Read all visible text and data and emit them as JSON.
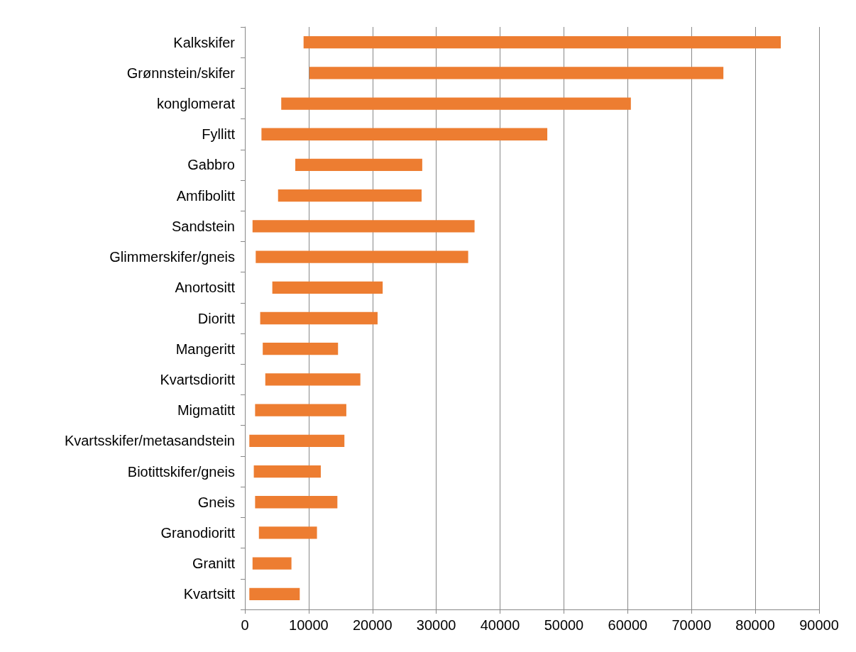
{
  "chart_data": {
    "type": "bar",
    "orientation": "horizontal",
    "categories": [
      "Kalkskifer",
      "Grønnstein/skifer",
      "konglomerat",
      "Fyllitt",
      "Gabbro",
      "Amfibolitt",
      "Sandstein",
      "Glimmerskifer/gneis",
      "Anortositt",
      "Dioritt",
      "Mangeritt",
      "Kvartsdioritt",
      "Migmatitt",
      "Kvartsskifer/metasandstein",
      "Biotittskifer/gneis",
      "Gneis",
      "Granodioritt",
      "Granitt",
      "Kvartsitt"
    ],
    "base": [
      9200,
      10100,
      5700,
      2600,
      7900,
      5200,
      1200,
      1700,
      4300,
      2400,
      2800,
      3200,
      1600,
      700,
      1400,
      1600,
      2200,
      1200,
      700
    ],
    "values": [
      74800,
      64900,
      54800,
      44800,
      19900,
      22500,
      34800,
      33300,
      17300,
      18400,
      11800,
      14900,
      14300,
      14900,
      10500,
      12900,
      9100,
      6100,
      7900
    ],
    "color": "#ed7d31",
    "xlim": [
      0,
      90000
    ],
    "xticks": [
      0,
      10000,
      20000,
      30000,
      40000,
      50000,
      60000,
      70000,
      80000,
      90000
    ],
    "grid": "x"
  }
}
